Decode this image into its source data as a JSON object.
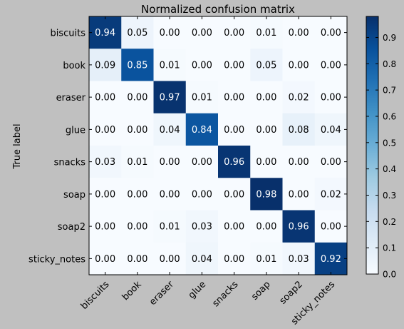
{
  "chart_data": {
    "type": "heatmap",
    "title": "Normalized confusion matrix",
    "ylabel": "True label",
    "xlabel": "",
    "row_labels": [
      "biscuits",
      "book",
      "eraser",
      "glue",
      "snacks",
      "soap",
      "soap2",
      "sticky_notes"
    ],
    "col_labels": [
      "biscuits",
      "book",
      "eraser",
      "glue",
      "snacks",
      "soap",
      "soap2",
      "sticky_notes"
    ],
    "values": [
      [
        0.94,
        0.05,
        0.0,
        0.0,
        0.0,
        0.01,
        0.0,
        0.0
      ],
      [
        0.09,
        0.85,
        0.01,
        0.0,
        0.0,
        0.05,
        0.0,
        0.0
      ],
      [
        0.0,
        0.0,
        0.97,
        0.01,
        0.0,
        0.0,
        0.02,
        0.0
      ],
      [
        0.0,
        0.0,
        0.04,
        0.84,
        0.0,
        0.0,
        0.08,
        0.04
      ],
      [
        0.03,
        0.01,
        0.0,
        0.0,
        0.96,
        0.0,
        0.0,
        0.0
      ],
      [
        0.0,
        0.0,
        0.0,
        0.0,
        0.0,
        0.98,
        0.0,
        0.02
      ],
      [
        0.0,
        0.0,
        0.01,
        0.03,
        0.0,
        0.0,
        0.96,
        0.0
      ],
      [
        0.0,
        0.0,
        0.0,
        0.04,
        0.0,
        0.01,
        0.03,
        0.92
      ]
    ],
    "colorbar": {
      "range": [
        0.0,
        0.98
      ],
      "ticks": [
        "0.0",
        "0.1",
        "0.2",
        "0.3",
        "0.4",
        "0.5",
        "0.6",
        "0.7",
        "0.8",
        "0.9"
      ],
      "colormap": "Blues"
    },
    "colors": {
      "background": "#c0c0c0",
      "plot_bg": "#ffffff",
      "text_light": "#ffffff",
      "text_dark": "#000000"
    }
  }
}
